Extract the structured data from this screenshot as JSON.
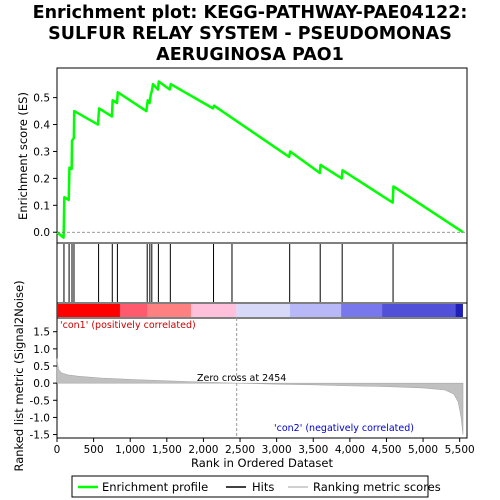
{
  "chart_data": {
    "type": "line",
    "title": [
      "Enrichment plot: KEGG-PATHWAY-PAE04122:",
      "SULFUR RELAY SYSTEM - PSEUDOMONAS",
      "AERUGINOSA PAO1"
    ],
    "xlabel": "Rank in Ordered Dataset",
    "ylabel_top": "Enrichment score (ES)",
    "ylabel_bottom": "Ranked list metric (Signal2Noise)",
    "xlim": [
      0,
      5600
    ],
    "x_ticks": [
      0,
      500,
      1000,
      1500,
      2000,
      2500,
      3000,
      3500,
      4000,
      4500,
      5000,
      5500
    ],
    "es_ylim": [
      -0.04,
      0.61
    ],
    "es_ticks": [
      0.0,
      0.1,
      0.2,
      0.3,
      0.4,
      0.5
    ],
    "metric_ylim": [
      -1.6,
      1.9
    ],
    "metric_ticks": [
      -1.5,
      -1.0,
      -0.5,
      0.0,
      0.5,
      1.0,
      1.5
    ],
    "grid": false,
    "series": [
      {
        "name": "Enrichment profile",
        "color": "#00ff00",
        "x": [
          0,
          90,
          100,
          160,
          170,
          200,
          205,
          230,
          235,
          560,
          575,
          750,
          760,
          820,
          830,
          1220,
          1240,
          1265,
          1280,
          1300,
          1310,
          1380,
          1390,
          1540,
          1555,
          2130,
          2145,
          3170,
          3185,
          3590,
          3600,
          3890,
          3900,
          4585,
          4595,
          5545
        ],
        "y": [
          0.0,
          -0.02,
          0.13,
          0.12,
          0.24,
          0.235,
          0.34,
          0.35,
          0.45,
          0.4,
          0.46,
          0.43,
          0.49,
          0.48,
          0.52,
          0.45,
          0.49,
          0.48,
          0.51,
          0.53,
          0.55,
          0.53,
          0.56,
          0.53,
          0.55,
          0.46,
          0.47,
          0.28,
          0.3,
          0.22,
          0.25,
          0.2,
          0.23,
          0.11,
          0.17,
          0.0
        ]
      }
    ],
    "hits": [
      95,
      165,
      205,
      232,
      568,
      755,
      825,
      1232,
      1268,
      1295,
      1385,
      1548,
      2138,
      2390,
      3178,
      3595,
      3895,
      4590
    ],
    "metric_profile": {
      "x": [
        0,
        20,
        60,
        150,
        300,
        600,
        1000,
        1500,
        2000,
        2454,
        3000,
        3500,
        4000,
        4500,
        5000,
        5300,
        5420,
        5480,
        5520,
        5545
      ],
      "y": [
        0.72,
        0.4,
        0.3,
        0.24,
        0.2,
        0.15,
        0.11,
        0.07,
        0.03,
        0.0,
        -0.03,
        -0.05,
        -0.08,
        -0.1,
        -0.14,
        -0.2,
        -0.32,
        -0.55,
        -1.0,
        -1.5
      ]
    },
    "heatmap_colors": [
      "#ff0000",
      "#ff5a6e",
      "#ff8080",
      "#ffc0dc",
      "#d8d8f8",
      "#b8b8f8",
      "#7878ec",
      "#5050d8",
      "#2020b8"
    ],
    "heatmap_breaks": [
      0,
      860,
      1240,
      1830,
      2450,
      3180,
      3880,
      4440,
      5440,
      5545
    ],
    "zero_cross_rank": 2454,
    "annotations": {
      "zero_cross": "Zero cross at 2454",
      "pos_label": "'con1' (positively correlated)",
      "neg_label": "'con2' (negatively correlated)"
    },
    "legend": [
      "Enrichment profile",
      "Hits",
      "Ranking metric scores"
    ],
    "legend_position": "bottom"
  }
}
